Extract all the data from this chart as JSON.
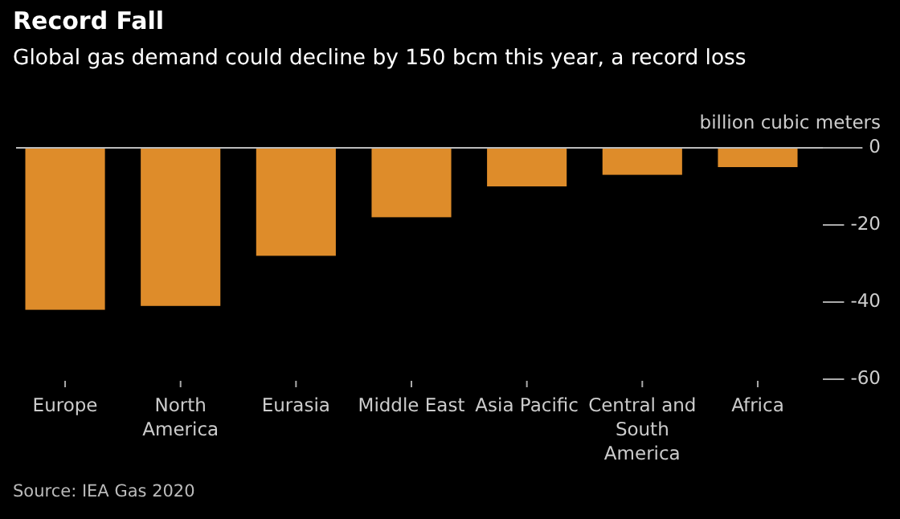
{
  "chart_data": {
    "type": "bar",
    "title": "Record Fall",
    "subtitle": "Global gas demand could decline by 150 bcm this year, a record loss",
    "categories": [
      "Europe",
      "North America",
      "Eurasia",
      "Middle East",
      "Asia Pacific",
      "Central and South America",
      "Africa"
    ],
    "values": [
      -42,
      -41,
      -28,
      -18,
      -10,
      -7,
      -5
    ],
    "color": "#de8c2a",
    "ylabel": "billion cubic meters",
    "ylim": [
      -60,
      0
    ],
    "yticks": [
      0,
      -20,
      -40,
      -60
    ],
    "annotations": [
      "Source: IEA Gas 2020"
    ]
  }
}
